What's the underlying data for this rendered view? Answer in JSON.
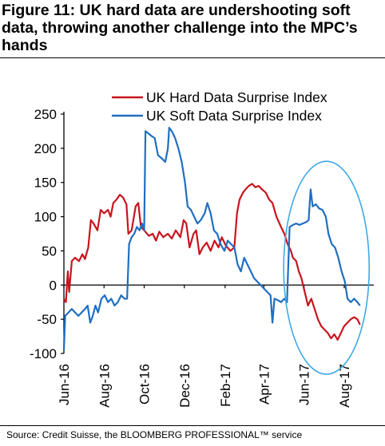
{
  "title": "Figure 11: UK hard data are undershooting soft data, throwing another challenge into the MPC’s hands",
  "source": "Source: Credit Suisse, the BLOOMBERG PROFESSIONAL™ service",
  "colors": {
    "hard": "#c8141e",
    "soft": "#1f6fc1",
    "ellipse": "#3fa9e8",
    "axis": "#000000"
  },
  "chart_data": {
    "type": "line",
    "title": "",
    "xlabel": "",
    "ylabel": "",
    "ylim": [
      -100,
      250
    ],
    "yticks": [
      250,
      200,
      150,
      100,
      50,
      0,
      -50,
      -100
    ],
    "xlim": [
      "2016-06-01",
      "2017-09-15"
    ],
    "xticks": [
      {
        "date": "2016-06-01",
        "label": "Jun-16"
      },
      {
        "date": "2016-08-01",
        "label": "Aug-16"
      },
      {
        "date": "2016-10-01",
        "label": "Oct-16"
      },
      {
        "date": "2016-12-01",
        "label": "Dec-16"
      },
      {
        "date": "2017-02-01",
        "label": "Feb-17"
      },
      {
        "date": "2017-04-01",
        "label": "Apr-17"
      },
      {
        "date": "2017-06-01",
        "label": "Jun-17"
      },
      {
        "date": "2017-08-01",
        "label": "Aug-17"
      }
    ],
    "grid": false,
    "legend": "top-right",
    "annotation": {
      "type": "ellipse",
      "x_range": [
        "2017-05-01",
        "2017-09-08"
      ],
      "y_range": [
        -100,
        160
      ]
    },
    "series": [
      {
        "name": "UK Hard Data Surprise Index",
        "color": "#c8141e",
        "points": [
          [
            "2016-06-01",
            -20
          ],
          [
            "2016-06-04",
            -25
          ],
          [
            "2016-06-07",
            20
          ],
          [
            "2016-06-09",
            -10
          ],
          [
            "2016-06-13",
            35
          ],
          [
            "2016-06-18",
            40
          ],
          [
            "2016-06-24",
            35
          ],
          [
            "2016-06-29",
            45
          ],
          [
            "2016-07-03",
            38
          ],
          [
            "2016-07-08",
            55
          ],
          [
            "2016-07-12",
            95
          ],
          [
            "2016-07-16",
            90
          ],
          [
            "2016-07-22",
            80
          ],
          [
            "2016-07-27",
            110
          ],
          [
            "2016-08-01",
            105
          ],
          [
            "2016-08-07",
            110
          ],
          [
            "2016-08-11",
            100
          ],
          [
            "2016-08-15",
            120
          ],
          [
            "2016-08-20",
            125
          ],
          [
            "2016-08-25",
            132
          ],
          [
            "2016-08-30",
            128
          ],
          [
            "2016-09-04",
            118
          ],
          [
            "2016-09-07",
            75
          ],
          [
            "2016-09-12",
            80
          ],
          [
            "2016-09-18",
            115
          ],
          [
            "2016-09-22",
            120
          ],
          [
            "2016-09-26",
            85
          ],
          [
            "2016-10-01",
            80
          ],
          [
            "2016-10-08",
            72
          ],
          [
            "2016-10-14",
            75
          ],
          [
            "2016-10-19",
            65
          ],
          [
            "2016-10-24",
            78
          ],
          [
            "2016-10-30",
            70
          ],
          [
            "2016-11-06",
            75
          ],
          [
            "2016-11-12",
            68
          ],
          [
            "2016-11-18",
            80
          ],
          [
            "2016-11-25",
            70
          ],
          [
            "2016-11-30",
            95
          ],
          [
            "2016-12-04",
            90
          ],
          [
            "2016-12-09",
            55
          ],
          [
            "2016-12-15",
            75
          ],
          [
            "2016-12-19",
            80
          ],
          [
            "2016-12-24",
            45
          ],
          [
            "2016-12-29",
            55
          ],
          [
            "2017-01-04",
            62
          ],
          [
            "2017-01-10",
            50
          ],
          [
            "2017-01-16",
            65
          ],
          [
            "2017-01-22",
            55
          ],
          [
            "2017-01-27",
            70
          ],
          [
            "2017-02-02",
            58
          ],
          [
            "2017-02-09",
            50
          ],
          [
            "2017-02-15",
            55
          ],
          [
            "2017-02-19",
            105
          ],
          [
            "2017-02-23",
            125
          ],
          [
            "2017-02-28",
            135
          ],
          [
            "2017-03-04",
            140
          ],
          [
            "2017-03-09",
            145
          ],
          [
            "2017-03-14",
            148
          ],
          [
            "2017-03-19",
            143
          ],
          [
            "2017-03-24",
            145
          ],
          [
            "2017-03-29",
            140
          ],
          [
            "2017-04-04",
            135
          ],
          [
            "2017-04-09",
            125
          ],
          [
            "2017-04-14",
            120
          ],
          [
            "2017-04-20",
            100
          ],
          [
            "2017-04-27",
            85
          ],
          [
            "2017-05-02",
            75
          ],
          [
            "2017-05-07",
            60
          ],
          [
            "2017-05-12",
            50
          ],
          [
            "2017-05-15",
            40
          ],
          [
            "2017-05-20",
            35
          ],
          [
            "2017-05-24",
            20
          ],
          [
            "2017-05-28",
            10
          ],
          [
            "2017-06-02",
            -10
          ],
          [
            "2017-06-07",
            -30
          ],
          [
            "2017-06-12",
            -20
          ],
          [
            "2017-06-17",
            -35
          ],
          [
            "2017-06-22",
            -50
          ],
          [
            "2017-06-27",
            -60
          ],
          [
            "2017-07-02",
            -65
          ],
          [
            "2017-07-07",
            -70
          ],
          [
            "2017-07-12",
            -78
          ],
          [
            "2017-07-17",
            -72
          ],
          [
            "2017-07-22",
            -80
          ],
          [
            "2017-07-27",
            -70
          ],
          [
            "2017-08-01",
            -60
          ],
          [
            "2017-08-06",
            -55
          ],
          [
            "2017-08-11",
            -50
          ],
          [
            "2017-08-16",
            -47
          ],
          [
            "2017-08-21",
            -50
          ],
          [
            "2017-08-25",
            -58
          ]
        ]
      },
      {
        "name": "UK Soft Data Surprise Index",
        "color": "#1f6fc1",
        "points": [
          [
            "2016-06-01",
            -95
          ],
          [
            "2016-06-03",
            -45
          ],
          [
            "2016-06-08",
            -40
          ],
          [
            "2016-06-13",
            -35
          ],
          [
            "2016-06-18",
            -40
          ],
          [
            "2016-06-23",
            -45
          ],
          [
            "2016-06-28",
            -40
          ],
          [
            "2016-07-03",
            -35
          ],
          [
            "2016-07-07",
            -30
          ],
          [
            "2016-07-11",
            -55
          ],
          [
            "2016-07-15",
            -45
          ],
          [
            "2016-07-19",
            -30
          ],
          [
            "2016-07-23",
            -40
          ],
          [
            "2016-07-28",
            -20
          ],
          [
            "2016-08-02",
            -15
          ],
          [
            "2016-08-07",
            -25
          ],
          [
            "2016-08-12",
            -20
          ],
          [
            "2016-08-17",
            -30
          ],
          [
            "2016-08-22",
            -25
          ],
          [
            "2016-08-27",
            -15
          ],
          [
            "2016-09-01",
            -20
          ],
          [
            "2016-09-05",
            -20
          ],
          [
            "2016-09-08",
            60
          ],
          [
            "2016-09-12",
            70
          ],
          [
            "2016-09-16",
            75
          ],
          [
            "2016-09-20",
            85
          ],
          [
            "2016-09-24",
            80
          ],
          [
            "2016-09-28",
            90
          ],
          [
            "2016-10-01",
            80
          ],
          [
            "2016-10-03",
            225
          ],
          [
            "2016-10-07",
            222
          ],
          [
            "2016-10-12",
            218
          ],
          [
            "2016-10-17",
            215
          ],
          [
            "2016-10-22",
            190
          ],
          [
            "2016-10-28",
            185
          ],
          [
            "2016-11-02",
            180
          ],
          [
            "2016-11-06",
            200
          ],
          [
            "2016-11-08",
            230
          ],
          [
            "2016-11-12",
            225
          ],
          [
            "2016-11-17",
            215
          ],
          [
            "2016-11-22",
            200
          ],
          [
            "2016-11-27",
            180
          ],
          [
            "2016-12-02",
            150
          ],
          [
            "2016-12-06",
            115
          ],
          [
            "2016-12-11",
            110
          ],
          [
            "2016-12-16",
            100
          ],
          [
            "2016-12-21",
            90
          ],
          [
            "2016-12-26",
            95
          ],
          [
            "2017-01-01",
            105
          ],
          [
            "2017-01-05",
            120
          ],
          [
            "2017-01-10",
            105
          ],
          [
            "2017-01-15",
            80
          ],
          [
            "2017-01-20",
            75
          ],
          [
            "2017-01-25",
            60
          ],
          [
            "2017-01-31",
            50
          ],
          [
            "2017-02-05",
            65
          ],
          [
            "2017-02-10",
            60
          ],
          [
            "2017-02-15",
            55
          ],
          [
            "2017-02-20",
            30
          ],
          [
            "2017-02-25",
            20
          ],
          [
            "2017-03-02",
            40
          ],
          [
            "2017-03-07",
            30
          ],
          [
            "2017-03-12",
            20
          ],
          [
            "2017-03-17",
            10
          ],
          [
            "2017-03-22",
            5
          ],
          [
            "2017-03-27",
            0
          ],
          [
            "2017-04-01",
            -5
          ],
          [
            "2017-04-06",
            -10
          ],
          [
            "2017-04-11",
            -15
          ],
          [
            "2017-04-14",
            -55
          ],
          [
            "2017-04-17",
            -20
          ],
          [
            "2017-04-22",
            -22
          ],
          [
            "2017-04-27",
            -25
          ],
          [
            "2017-05-02",
            -20
          ],
          [
            "2017-05-06",
            -25
          ],
          [
            "2017-05-10",
            85
          ],
          [
            "2017-05-15",
            88
          ],
          [
            "2017-05-20",
            90
          ],
          [
            "2017-05-25",
            88
          ],
          [
            "2017-05-30",
            90
          ],
          [
            "2017-06-04",
            92
          ],
          [
            "2017-06-08",
            95
          ],
          [
            "2017-06-11",
            140
          ],
          [
            "2017-06-14",
            115
          ],
          [
            "2017-06-19",
            118
          ],
          [
            "2017-06-24",
            112
          ],
          [
            "2017-06-29",
            110
          ],
          [
            "2017-07-04",
            100
          ],
          [
            "2017-07-08",
            75
          ],
          [
            "2017-07-13",
            60
          ],
          [
            "2017-07-18",
            55
          ],
          [
            "2017-07-23",
            40
          ],
          [
            "2017-07-28",
            20
          ],
          [
            "2017-08-02",
            5
          ],
          [
            "2017-08-06",
            -20
          ],
          [
            "2017-08-11",
            -25
          ],
          [
            "2017-08-16",
            -20
          ],
          [
            "2017-08-21",
            -25
          ],
          [
            "2017-08-25",
            -30
          ]
        ]
      }
    ]
  }
}
